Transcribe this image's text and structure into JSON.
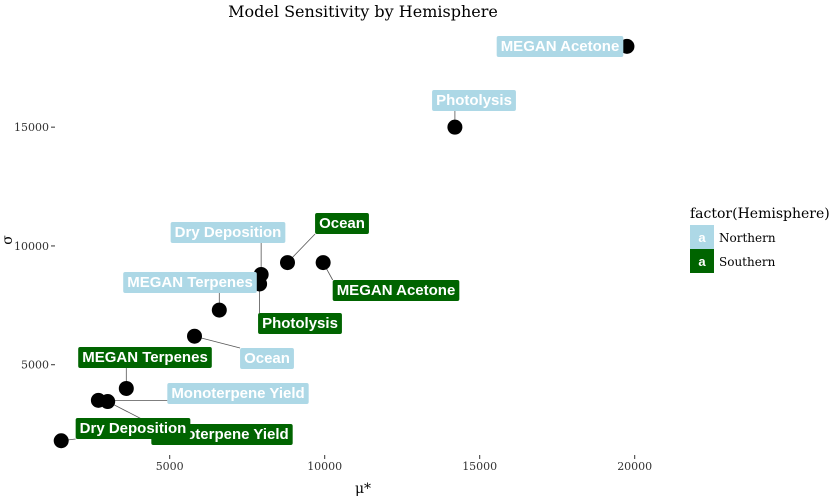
{
  "chart_data": {
    "type": "scatter",
    "title": "Model Sensitivity by Hemisphere",
    "xlabel": "μ*",
    "ylabel": "σ",
    "xlim": [
      1300,
      21300
    ],
    "ylim": [
      1200,
      19300
    ],
    "xticks": [
      5000,
      10000,
      15000,
      20000
    ],
    "yticks": [
      5000,
      10000,
      15000
    ],
    "grid": false,
    "legend": {
      "title": "factor(Hemisphere)",
      "position": "right",
      "key_glyph": "a",
      "entries": [
        {
          "label": "Northern",
          "color": "#add8e6"
        },
        {
          "label": "Southern",
          "color": "#006400"
        }
      ]
    },
    "series": [
      {
        "name": "Northern",
        "color": "#add8e6",
        "points": [
          {
            "label": "MEGAN Acetone",
            "x": 19750,
            "y": 18400
          },
          {
            "label": "Photolysis",
            "x": 14200,
            "y": 15000
          },
          {
            "label": "Dry Deposition",
            "x": 7950,
            "y": 8800
          },
          {
            "label": "MEGAN Terpenes",
            "x": 6600,
            "y": 7300
          },
          {
            "label": "Ocean",
            "x": 5800,
            "y": 6200
          },
          {
            "label": "Monoterpene Yield",
            "x": 2700,
            "y": 3500
          }
        ]
      },
      {
        "name": "Southern",
        "color": "#006400",
        "points": [
          {
            "label": "Ocean",
            "x": 8800,
            "y": 9300
          },
          {
            "label": "MEGAN Acetone",
            "x": 9950,
            "y": 9300
          },
          {
            "label": "Photolysis",
            "x": 7900,
            "y": 8400
          },
          {
            "label": "MEGAN Terpenes",
            "x": 3600,
            "y": 4000
          },
          {
            "label": "Monoterpene Yield",
            "x": 3000,
            "y": 3450
          },
          {
            "label": "Dry Deposition",
            "x": 1500,
            "y": 1800
          }
        ]
      }
    ]
  }
}
